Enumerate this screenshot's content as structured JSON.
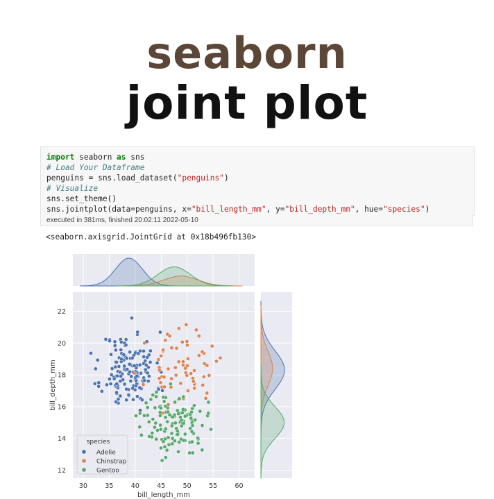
{
  "header": {
    "line1": "seaborn",
    "line2": "joint plot"
  },
  "code_cell": {
    "lines": [
      [
        {
          "t": "import",
          "c": "kw"
        },
        {
          "t": " seaborn ",
          "c": ""
        },
        {
          "t": "as",
          "c": "kw"
        },
        {
          "t": " sns",
          "c": ""
        }
      ],
      [
        {
          "t": "# Load Your Dataframe",
          "c": "cm"
        }
      ],
      [
        {
          "t": "penguins = sns.load_dataset(",
          "c": ""
        },
        {
          "t": "\"penguins\"",
          "c": "st"
        },
        {
          "t": ")",
          "c": ""
        }
      ],
      [
        {
          "t": "# Visualize",
          "c": "cm"
        }
      ],
      [
        {
          "t": "sns.set_theme()",
          "c": ""
        }
      ],
      [
        {
          "t": "sns.jointplot(data=penguins, x=",
          "c": ""
        },
        {
          "t": "\"bill_length_mm\"",
          "c": "st"
        },
        {
          "t": ", y=",
          "c": ""
        },
        {
          "t": "\"bill_depth_mm\"",
          "c": "st"
        },
        {
          "t": ", hue=",
          "c": ""
        },
        {
          "t": "\"species\"",
          "c": "st"
        },
        {
          "t": ")",
          "c": ""
        }
      ]
    ],
    "exec_info": "executed in 381ms, finished 20:02:11 2022-05-10"
  },
  "output_text": "<seaborn.axisgrid.JointGrid at 0x18b496fb130>",
  "chart_data": {
    "type": "scatter",
    "xlabel": "bill_length_mm",
    "ylabel": "bill_depth_mm",
    "xlim": [
      28,
      63
    ],
    "ylim": [
      11.5,
      23.2
    ],
    "xticks": [
      30,
      35,
      40,
      45,
      50,
      55,
      60
    ],
    "yticks": [
      12,
      14,
      16,
      18,
      20,
      22
    ],
    "grid": true,
    "legend_placement": "bottom-left",
    "legend_title": "species",
    "marginals": "kde",
    "series": [
      {
        "name": "Adelie",
        "color": "#4c72b0",
        "x_mean": 38.8,
        "x_sd": 2.6,
        "y_mean": 18.3,
        "y_sd": 1.2,
        "count": 150,
        "seed": 11
      },
      {
        "name": "Chinstrap",
        "color": "#dd8452",
        "x_mean": 48.8,
        "x_sd": 3.3,
        "y_mean": 18.4,
        "y_sd": 1.1,
        "count": 68,
        "seed": 23
      },
      {
        "name": "Gentoo",
        "color": "#55a868",
        "x_mean": 47.5,
        "x_sd": 3.1,
        "y_mean": 15.0,
        "y_sd": 1.0,
        "count": 123,
        "seed": 37
      }
    ]
  }
}
